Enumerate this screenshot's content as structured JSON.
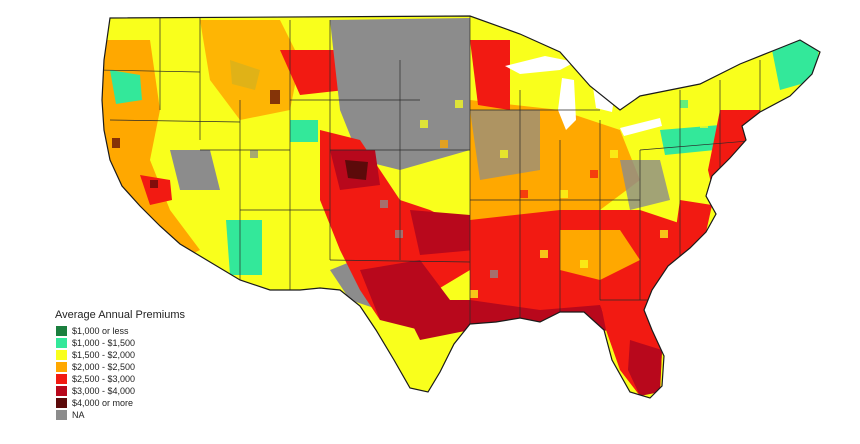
{
  "legend": {
    "title": "Average Annual Premiums",
    "items": [
      {
        "label": "$1,000 or less",
        "color": "#1b7f3e"
      },
      {
        "label": "$1,000 - $1,500",
        "color": "#33e89a"
      },
      {
        "label": "$1,500 - $2,000",
        "color": "#f9ff1c"
      },
      {
        "label": "$2,000 - $2,500",
        "color": "#ffa800"
      },
      {
        "label": "$2,500 - $3,000",
        "color": "#f21a12"
      },
      {
        "label": "$3,000 - $4,000",
        "color": "#b8081c"
      },
      {
        "label": "$4,000 or more",
        "color": "#5c0a0a"
      },
      {
        "label": "NA",
        "color": "#8c8c8c"
      }
    ]
  },
  "map": {
    "subject": "Continental United States county map",
    "region_colors": {
      "northwest": "#f9ff1c",
      "west_coast": "#ffa800",
      "mountain_west": "#f9ff1c",
      "great_plains": "#8c8c8c",
      "central_corridor": "#f21a12",
      "texas_oklahoma": "#b8081c",
      "gulf_coast": "#f21a12",
      "florida": "#b8081c",
      "midwest": "#ffa800",
      "southeast": "#f21a12",
      "northeast": "#f9ff1c",
      "new_england": "#33e89a"
    }
  }
}
